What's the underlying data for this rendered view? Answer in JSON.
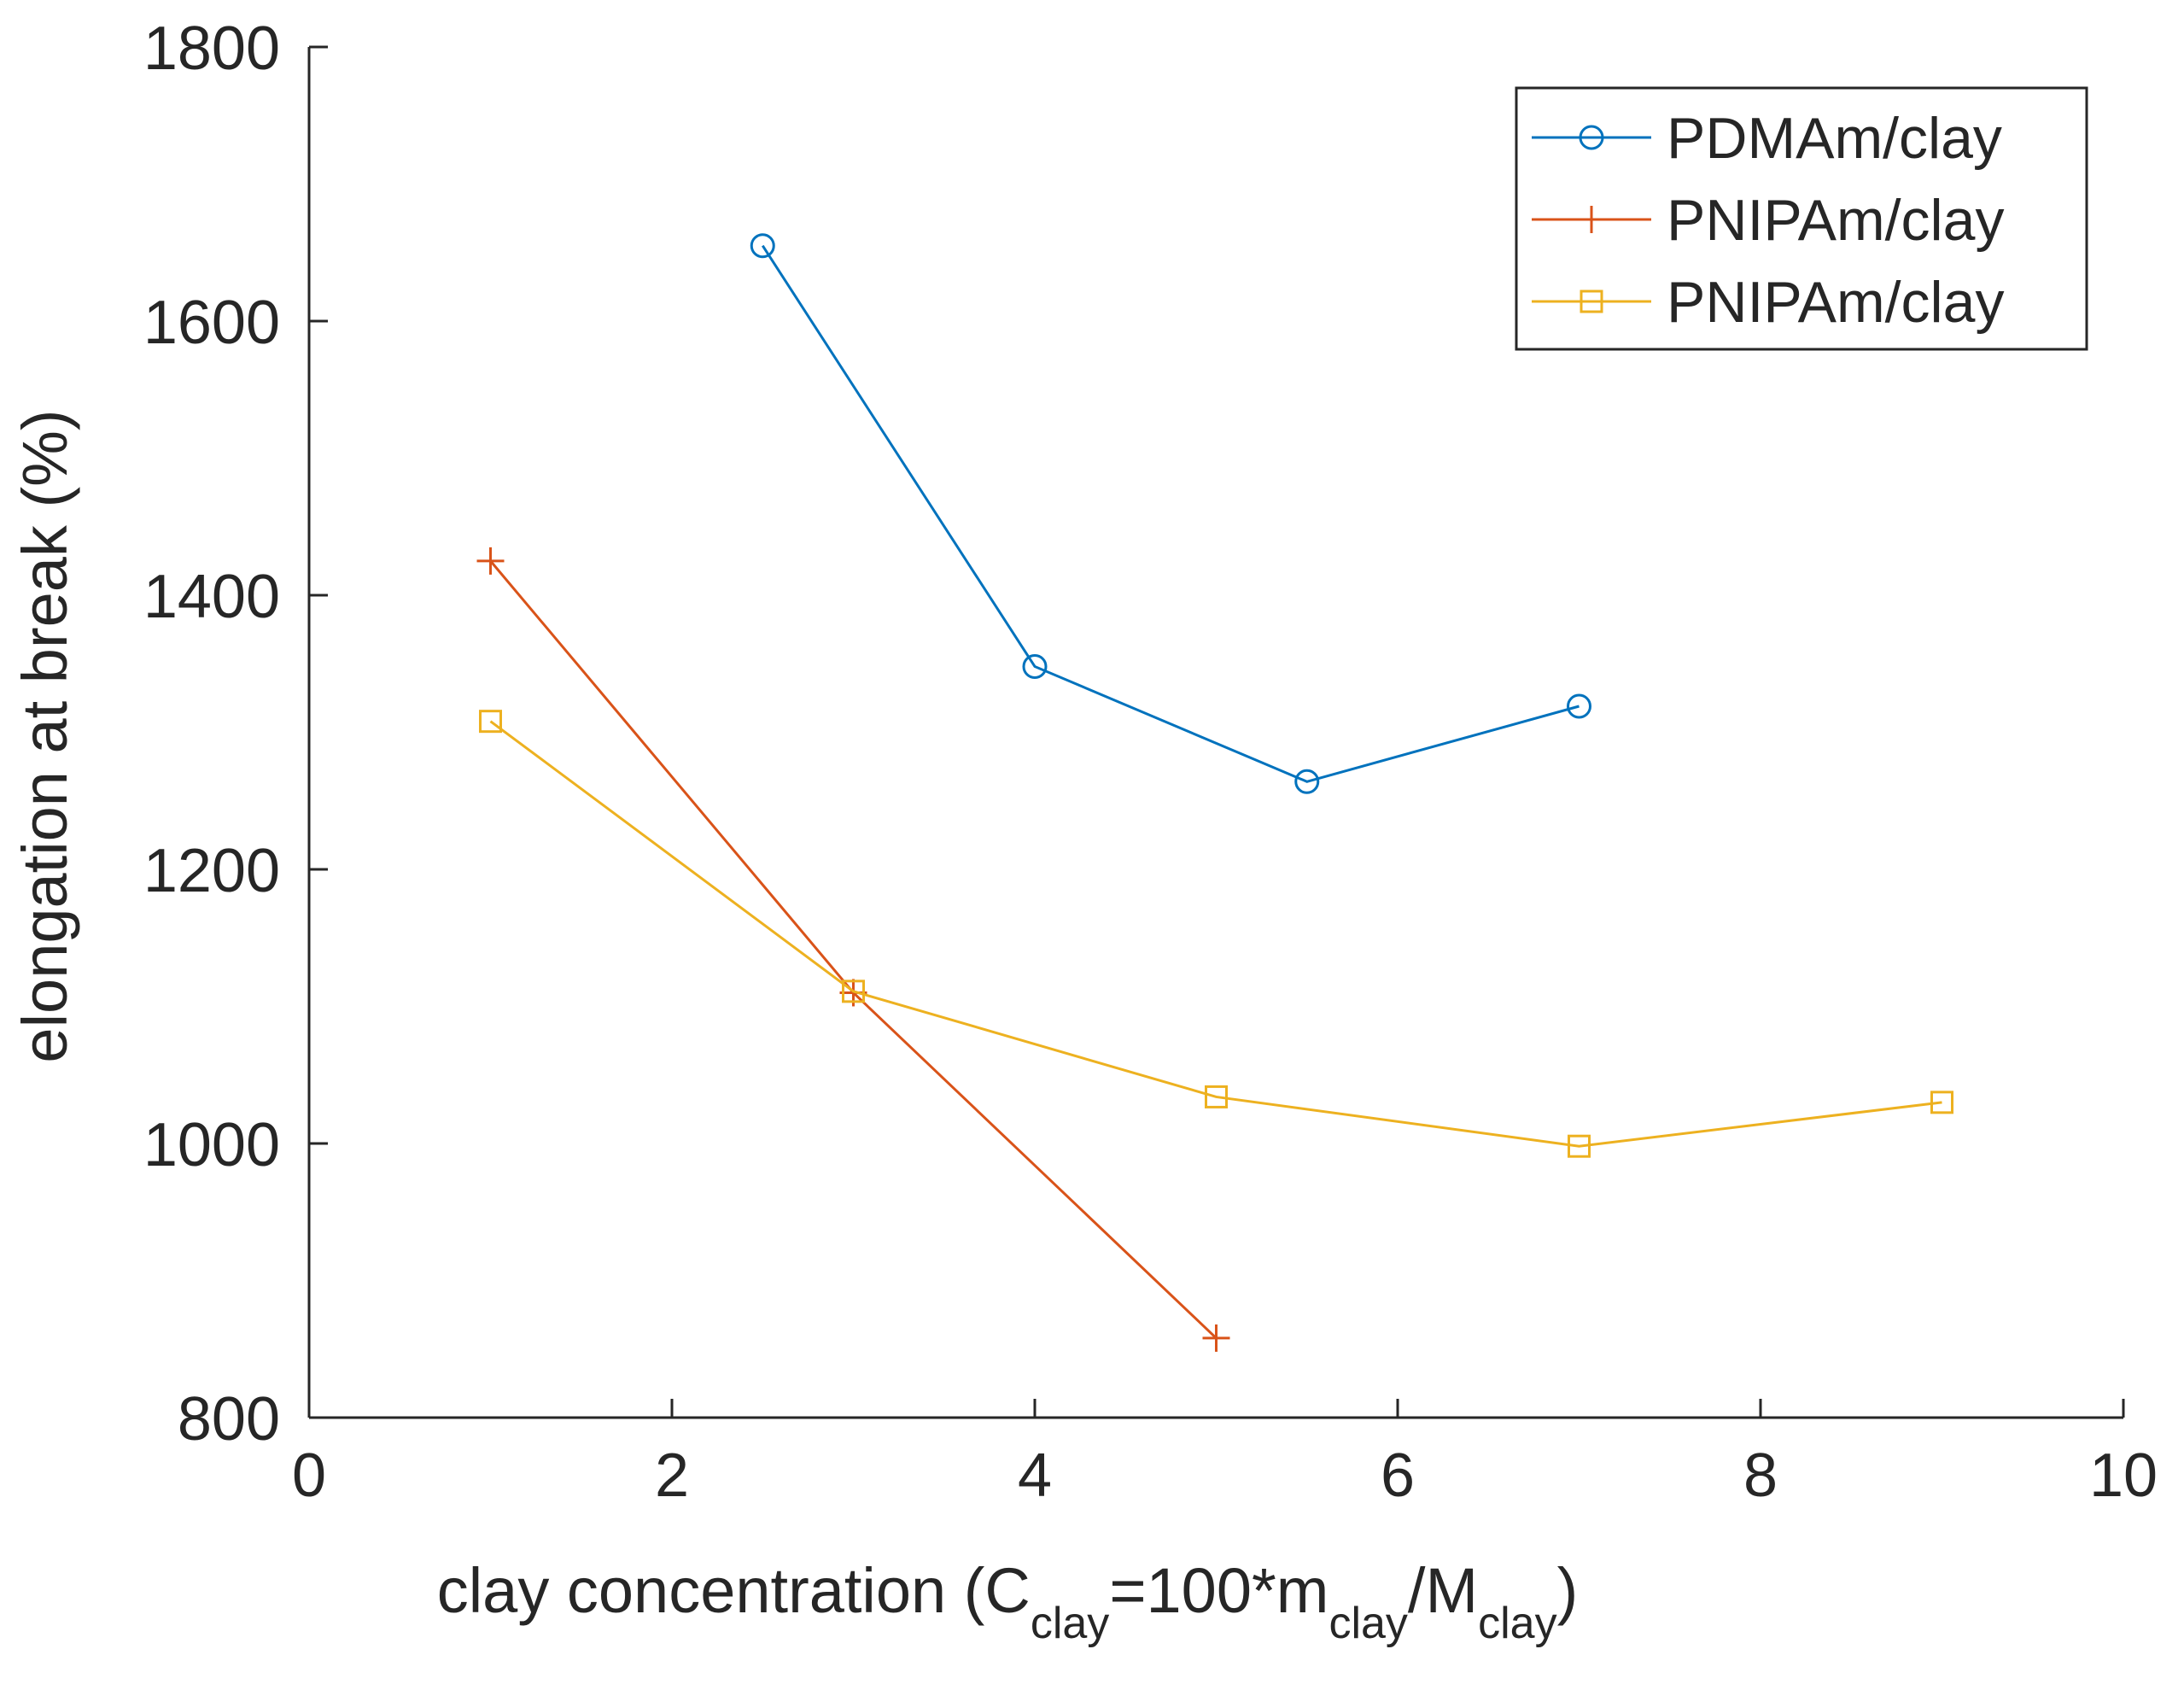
{
  "chart_data": {
    "type": "line",
    "title": "",
    "xlabel": {
      "prefix": "clay concentration (C",
      "sub1": "clay",
      "mid1": "=100*m",
      "sub2": "clay",
      "mid2": "/M",
      "sub3": "clay",
      "suffix": ")"
    },
    "ylabel": "elongation at break (%)",
    "xlim": [
      0,
      10
    ],
    "ylim": [
      800,
      1800
    ],
    "xticks": [
      "0",
      "2",
      "4",
      "6",
      "8",
      "10"
    ],
    "yticks": [
      "800",
      "1000",
      "1200",
      "1400",
      "1600",
      "1800"
    ],
    "legend_position": "top-right",
    "series": [
      {
        "name": "PDMAm/clay",
        "color": "#0072BD",
        "marker": "circle",
        "points": [
          [
            2.5,
            1655
          ],
          [
            4,
            1348
          ],
          [
            5.5,
            1264
          ],
          [
            7,
            1319
          ]
        ]
      },
      {
        "name": "PNIPAm/clay",
        "color": "#D95319",
        "marker": "plus",
        "points": [
          [
            1,
            1425
          ],
          [
            3,
            1110
          ],
          [
            5,
            858
          ]
        ]
      },
      {
        "name": "PNIPAm/clay",
        "color": "#EDB120",
        "marker": "square",
        "points": [
          [
            1,
            1308
          ],
          [
            3,
            1111
          ],
          [
            5,
            1034
          ],
          [
            7,
            998
          ],
          [
            9,
            1030
          ]
        ]
      }
    ]
  }
}
